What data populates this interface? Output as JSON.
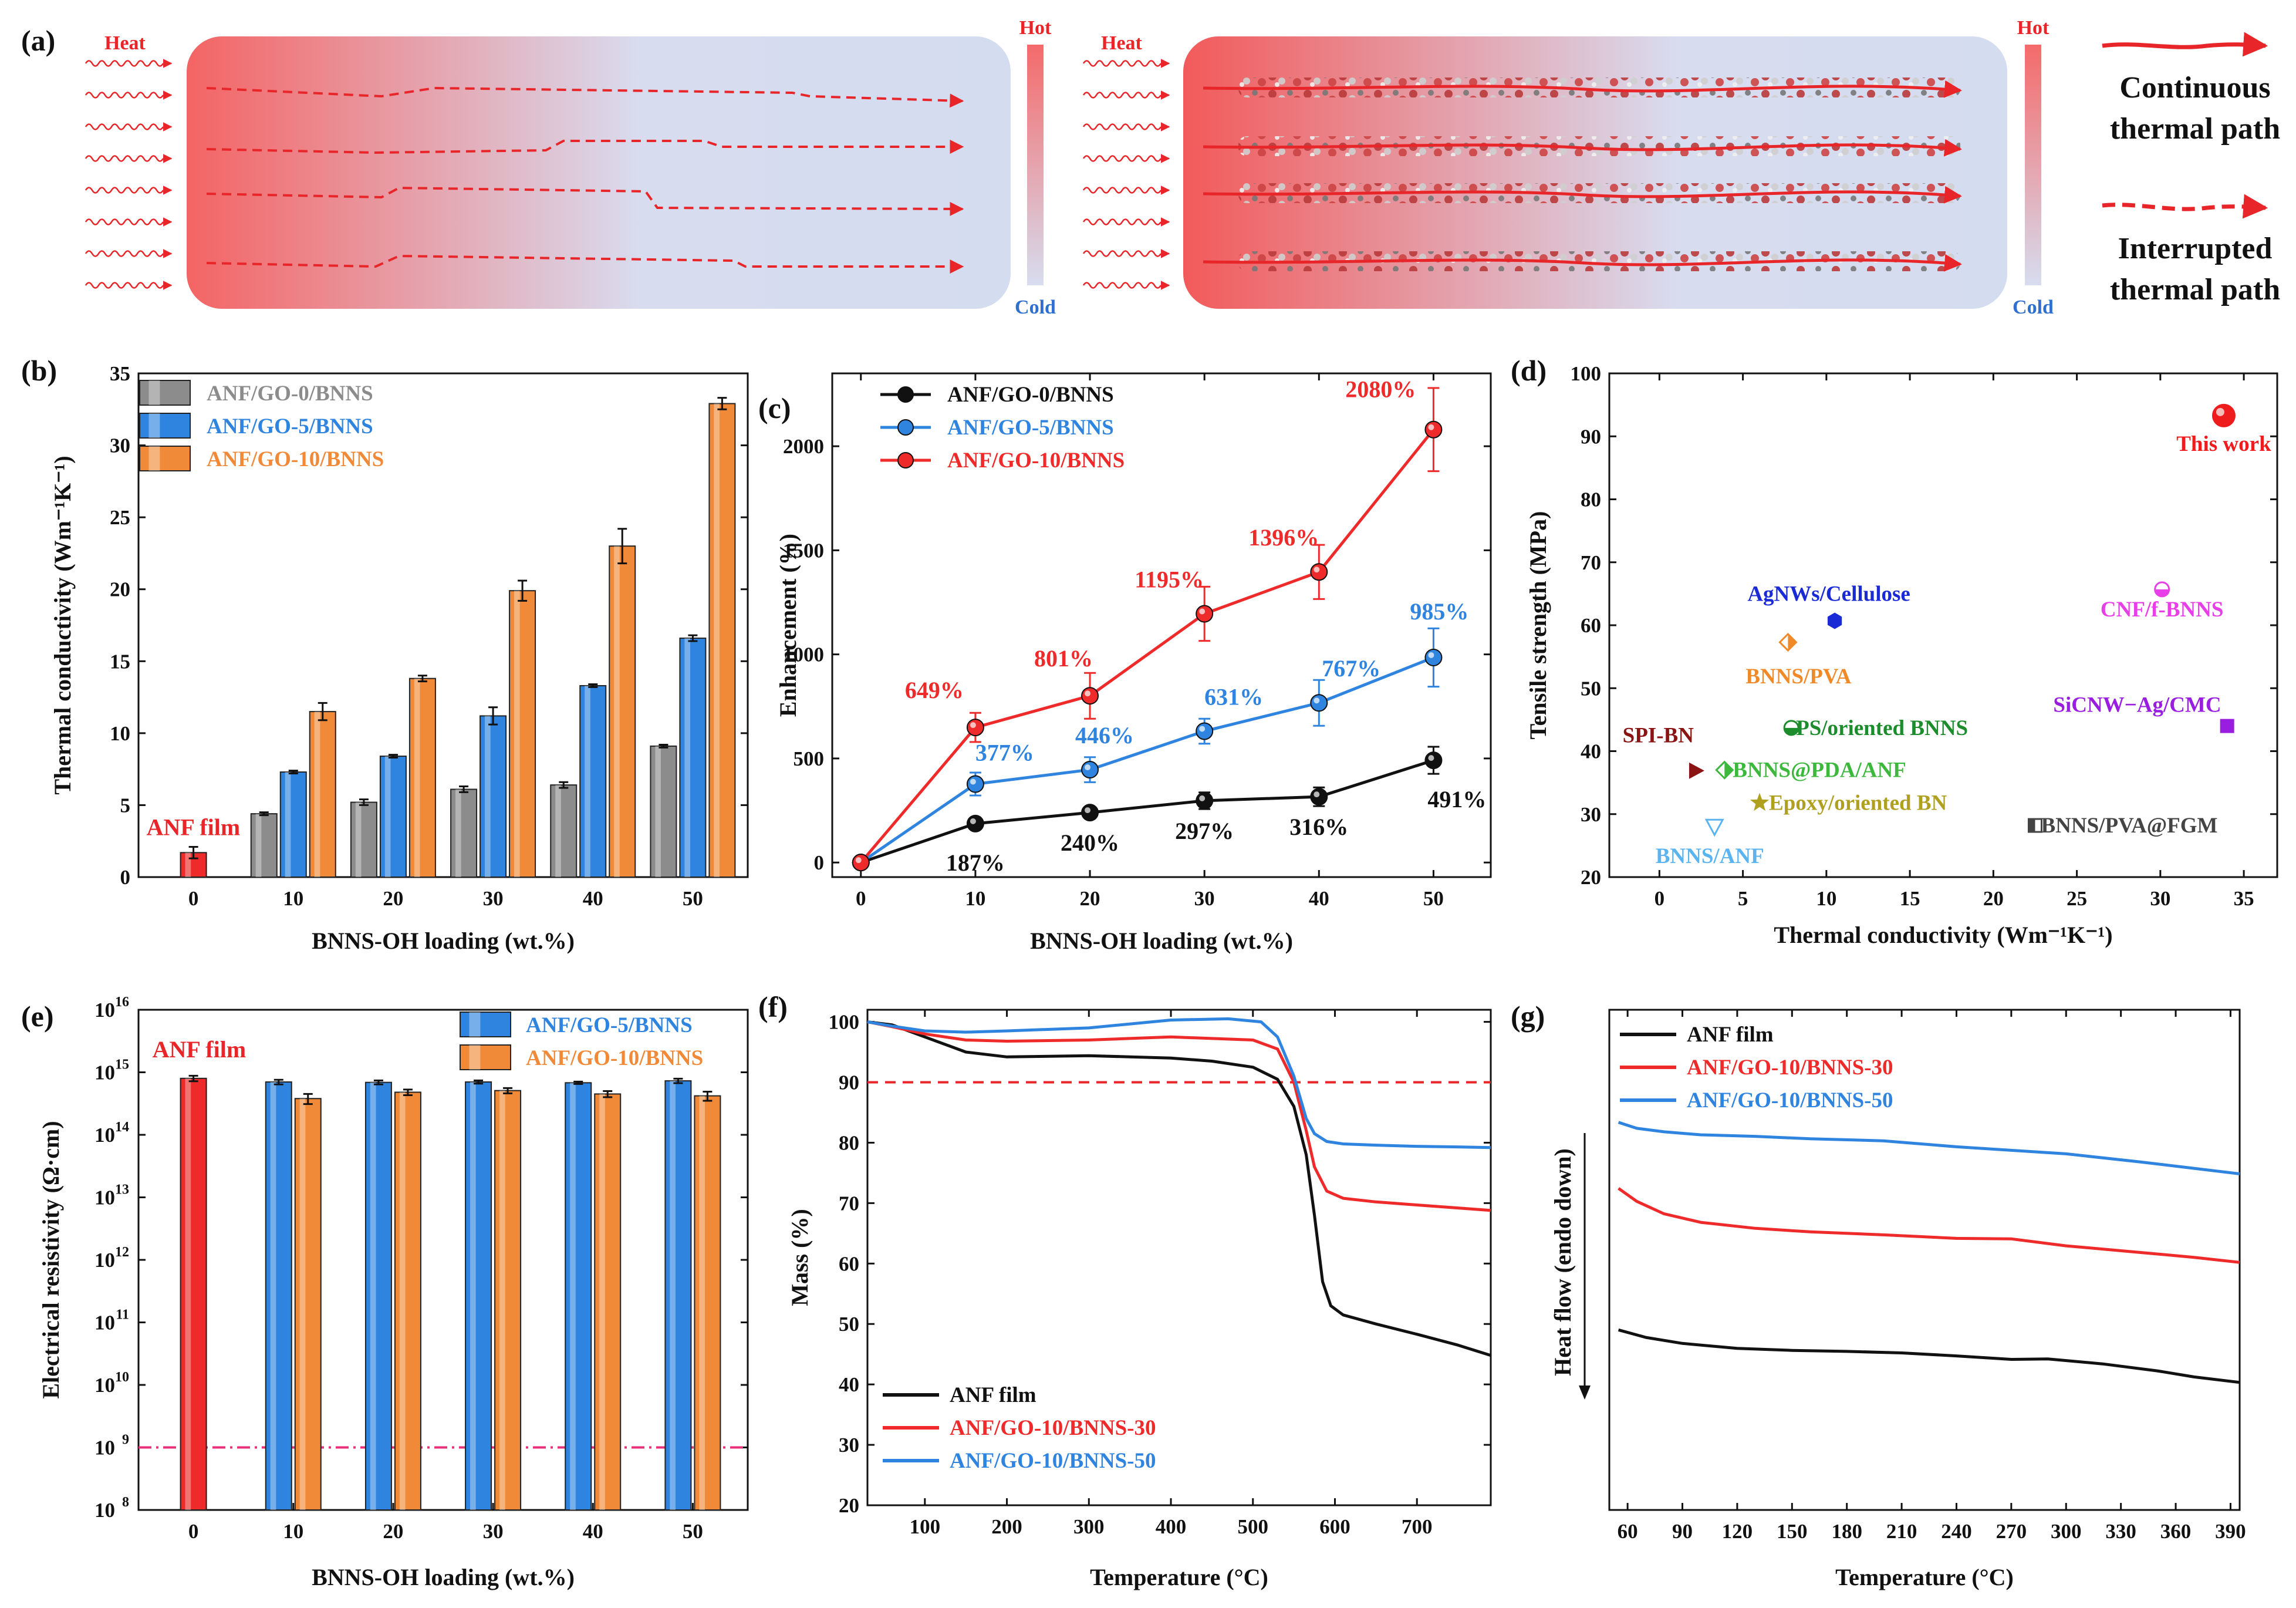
{
  "panel_labels": {
    "a": "(a)",
    "b": "(b)",
    "c": "(c)",
    "d": "(d)",
    "e": "(e)",
    "f": "(f)",
    "g": "(g)"
  },
  "schematic": {
    "heat_label": "Heat",
    "hot_label": "Hot",
    "cold_label": "Cold",
    "continuous_label_1": "Continuous",
    "continuous_label_2": "thermal path",
    "interrupted_label_1": "Interrupted",
    "interrupted_label_2": "thermal path",
    "colors": {
      "hot": "#f25a5a",
      "cold": "#d6ddef",
      "arrow": "#e8262a"
    }
  },
  "chart_data": [
    {
      "id": "b",
      "type": "bar",
      "xlabel": "BNNS-OH loading (wt.%)",
      "ylabel": "Thermal conductivity (Wm⁻¹K⁻¹)",
      "ylim": [
        0,
        35
      ],
      "yticks": [
        0,
        5,
        10,
        15,
        20,
        25,
        30,
        35
      ],
      "categories": [
        "0",
        "10",
        "20",
        "30",
        "40",
        "50"
      ],
      "annotation": "ANF film",
      "anf_film": {
        "value": 1.7,
        "err": 0.4,
        "color": "#ee2a2a"
      },
      "series": [
        {
          "name": "ANF/GO-0/BNNS",
          "color": "#8c8c8c",
          "values": [
            null,
            4.4,
            5.2,
            6.1,
            6.4,
            9.1
          ],
          "err": [
            null,
            0.1,
            0.2,
            0.2,
            0.2,
            0.1
          ]
        },
        {
          "name": "ANF/GO-5/BNNS",
          "color": "#2f84e0",
          "values": [
            null,
            7.3,
            8.4,
            11.2,
            13.3,
            16.6
          ],
          "err": [
            null,
            0.1,
            0.1,
            0.6,
            0.1,
            0.2
          ]
        },
        {
          "name": "ANF/GO-10/BNNS",
          "color": "#f08a38",
          "values": [
            null,
            11.5,
            13.8,
            19.9,
            23.0,
            32.9
          ],
          "err": [
            null,
            0.6,
            0.2,
            0.7,
            1.2,
            0.4
          ]
        }
      ]
    },
    {
      "id": "c",
      "type": "line",
      "xlabel": "BNNS-OH loading (wt.%)",
      "ylabel": "Enhancement (%)",
      "x": [
        0,
        10,
        20,
        30,
        40,
        50
      ],
      "xlim": [
        0,
        55
      ],
      "xticks": [
        0,
        10,
        20,
        30,
        40,
        50
      ],
      "ylim": [
        -70,
        2350
      ],
      "yticks": [
        0,
        500,
        1000,
        1500,
        2000
      ],
      "series": [
        {
          "name": "ANF/GO-0/BNNS",
          "color": "#111111",
          "values": [
            0,
            187,
            240,
            297,
            316,
            491
          ],
          "err": [
            0,
            15,
            25,
            40,
            45,
            65
          ],
          "labels": [
            "",
            "187%",
            "240%",
            "297%",
            "316%",
            "491%"
          ]
        },
        {
          "name": "ANF/GO-5/BNNS",
          "color": "#2f84e0",
          "values": [
            0,
            377,
            446,
            631,
            767,
            985
          ],
          "err": [
            0,
            55,
            60,
            60,
            110,
            140
          ],
          "labels": [
            "",
            "377%",
            "446%",
            "631%",
            "767%",
            "985%"
          ]
        },
        {
          "name": "ANF/GO-10/BNNS",
          "color": "#ee2a2a",
          "values": [
            0,
            649,
            801,
            1195,
            1396,
            2080
          ],
          "err": [
            0,
            70,
            110,
            130,
            130,
            200
          ],
          "labels": [
            "",
            "649%",
            "801%",
            "1195%",
            "1396%",
            "2080%"
          ]
        }
      ]
    },
    {
      "id": "d",
      "type": "scatter",
      "xlabel": "Thermal conductivity (Wm⁻¹K⁻¹)",
      "ylabel": "Tensile strength (MPa)",
      "xlim": [
        -3,
        37
      ],
      "ylim": [
        20,
        100
      ],
      "xticks": [
        0,
        5,
        10,
        15,
        20,
        25,
        30,
        35
      ],
      "yticks": [
        20,
        30,
        40,
        50,
        60,
        70,
        80,
        90,
        100
      ],
      "points": [
        {
          "label": "This work",
          "x": 33.8,
          "y": 93.3,
          "color": "#ee1c1c",
          "marker": "sphere"
        },
        {
          "label": "CNF/f-BNNS",
          "x": 30.1,
          "y": 65.7,
          "color": "#e83ee8",
          "marker": "half-circle"
        },
        {
          "label": "AgNWs/Cellulose",
          "x": 10.5,
          "y": 60.7,
          "color": "#1a2bd6",
          "marker": "hexagon"
        },
        {
          "label": "BNNS/PVA",
          "x": 7.7,
          "y": 57.3,
          "color": "#f08a28",
          "marker": "half-diamond"
        },
        {
          "label": "SiCNW−Ag/CMC",
          "x": 34.0,
          "y": 44.0,
          "color": "#9a1ee0",
          "marker": "square"
        },
        {
          "label": "PS/oriented BNNS",
          "x": 7.9,
          "y": 43.7,
          "color": "#1c8c2c",
          "marker": "half-circle"
        },
        {
          "label": "SPI-BN",
          "x": 2.2,
          "y": 36.9,
          "color": "#8a1414",
          "marker": "triangle-right"
        },
        {
          "label": "BNNS@PDA/ANF",
          "x": 3.9,
          "y": 37.0,
          "color": "#3cb83c",
          "marker": "half-diamond"
        },
        {
          "label": "Epoxy/oriented BN",
          "x": 6.0,
          "y": 31.8,
          "color": "#b0a020",
          "marker": "star"
        },
        {
          "label": "BNNS/PVA@FGM",
          "x": 22.5,
          "y": 28.2,
          "color": "#444444",
          "marker": "half-square"
        },
        {
          "label": "BNNS/ANF",
          "x": 3.3,
          "y": 28.0,
          "color": "#5ab4f0",
          "marker": "triangle-down"
        }
      ]
    },
    {
      "id": "e",
      "type": "bar",
      "yscale": "log",
      "xlabel": "BNNS-OH loading (wt.%)",
      "ylabel": "Electrical resistivity (Ω·cm)",
      "ylim_exp": [
        8,
        16
      ],
      "ytick_exps": [
        8,
        9,
        10,
        11,
        12,
        13,
        14,
        15,
        16
      ],
      "categories": [
        "0",
        "10",
        "20",
        "30",
        "40",
        "50"
      ],
      "annotation": "ANF film",
      "anf_film": {
        "value": 800000000000000.0,
        "err": 80000000000000.0,
        "color": "#ee2a2a"
      },
      "threshold": 1000000000.0,
      "threshold_color": "#e8307a",
      "series": [
        {
          "name": "ANF/GO-5/BNNS",
          "color": "#2f84e0",
          "values": [
            null,
            700000000000000.0,
            690000000000000.0,
            700000000000000.0,
            680000000000000.0,
            730000000000000.0
          ],
          "err": [
            null,
            60000000000000.0,
            50000000000000.0,
            40000000000000.0,
            30000000000000.0,
            60000000000000.0
          ]
        },
        {
          "name": "ANF/GO-10/BNNS",
          "color": "#f08a38",
          "values": [
            null,
            380000000000000.0,
            480000000000000.0,
            510000000000000.0,
            450000000000000.0,
            420000000000000.0
          ],
          "err": [
            null,
            70000000000000.0,
            50000000000000.0,
            50000000000000.0,
            50000000000000.0,
            70000000000000.0
          ]
        }
      ]
    },
    {
      "id": "f",
      "type": "line",
      "xlabel": "Temperature (°C)",
      "ylabel": "Mass (%)",
      "xlim": [
        30,
        790
      ],
      "ylim": [
        20,
        102
      ],
      "xticks": [
        100,
        200,
        300,
        400,
        500,
        600,
        700
      ],
      "yticks": [
        20,
        30,
        40,
        50,
        60,
        70,
        80,
        90,
        100
      ],
      "reference_y": 90,
      "series": [
        {
          "name": "ANF film",
          "color": "#111111",
          "x": [
            30,
            60,
            100,
            150,
            200,
            300,
            400,
            450,
            500,
            530,
            550,
            565,
            575,
            585,
            595,
            610,
            650,
            700,
            750,
            790
          ],
          "values": [
            100,
            99.5,
            97.5,
            95.0,
            94.2,
            94.4,
            94.0,
            93.5,
            92.5,
            90.5,
            86,
            78,
            68,
            57,
            53,
            51.5,
            50,
            48.3,
            46.5,
            44.8
          ]
        },
        {
          "name": "ANF/GO-10/BNNS-30",
          "color": "#ee2a2a",
          "x": [
            30,
            60,
            100,
            150,
            200,
            300,
            400,
            500,
            530,
            550,
            565,
            575,
            590,
            610,
            650,
            700,
            750,
            790
          ],
          "values": [
            100,
            99.2,
            98.0,
            97.0,
            96.8,
            97.0,
            97.5,
            97.0,
            95.5,
            90,
            82,
            76,
            72,
            70.8,
            70.2,
            69.7,
            69.2,
            68.8
          ]
        },
        {
          "name": "ANF/GO-10/BNNS-50",
          "color": "#2f84e0",
          "x": [
            30,
            60,
            100,
            150,
            200,
            300,
            400,
            470,
            510,
            530,
            550,
            565,
            575,
            590,
            610,
            650,
            700,
            750,
            790
          ],
          "values": [
            100,
            99.3,
            98.5,
            98.3,
            98.5,
            99.0,
            100.3,
            100.5,
            100.0,
            97.5,
            91,
            84,
            81.5,
            80.2,
            79.8,
            79.6,
            79.4,
            79.3,
            79.2
          ]
        }
      ]
    },
    {
      "id": "g",
      "type": "line",
      "xlabel": "Temperature (°C)",
      "ylabel": "Heat flow (endo down)",
      "xlim": [
        50,
        395
      ],
      "ylim": [
        0,
        100
      ],
      "xticks": [
        60,
        90,
        120,
        150,
        180,
        210,
        240,
        270,
        300,
        330,
        360,
        390
      ],
      "series": [
        {
          "name": "ANF film",
          "color": "#111111",
          "x": [
            55,
            70,
            90,
            120,
            150,
            180,
            210,
            240,
            270,
            290,
            320,
            350,
            370,
            395
          ],
          "values": [
            36.0,
            34.5,
            33.3,
            32.3,
            31.9,
            31.7,
            31.4,
            30.8,
            30.1,
            30.2,
            29.2,
            27.8,
            26.6,
            25.5
          ]
        },
        {
          "name": "ANF/GO-10/BNNS-30",
          "color": "#ee2a2a",
          "x": [
            55,
            65,
            80,
            100,
            130,
            160,
            200,
            240,
            270,
            300,
            340,
            370,
            395
          ],
          "values": [
            64.3,
            61.7,
            59.2,
            57.5,
            56.3,
            55.6,
            55.0,
            54.3,
            54.2,
            52.8,
            51.5,
            50.5,
            49.5
          ]
        },
        {
          "name": "ANF/GO-10/BNNS-50",
          "color": "#2f84e0",
          "x": [
            55,
            65,
            80,
            100,
            130,
            160,
            200,
            240,
            270,
            300,
            340,
            370,
            395
          ],
          "values": [
            77.5,
            76.3,
            75.6,
            75.0,
            74.7,
            74.2,
            73.8,
            72.6,
            71.9,
            71.2,
            69.6,
            68.3,
            67.2
          ]
        }
      ]
    }
  ]
}
